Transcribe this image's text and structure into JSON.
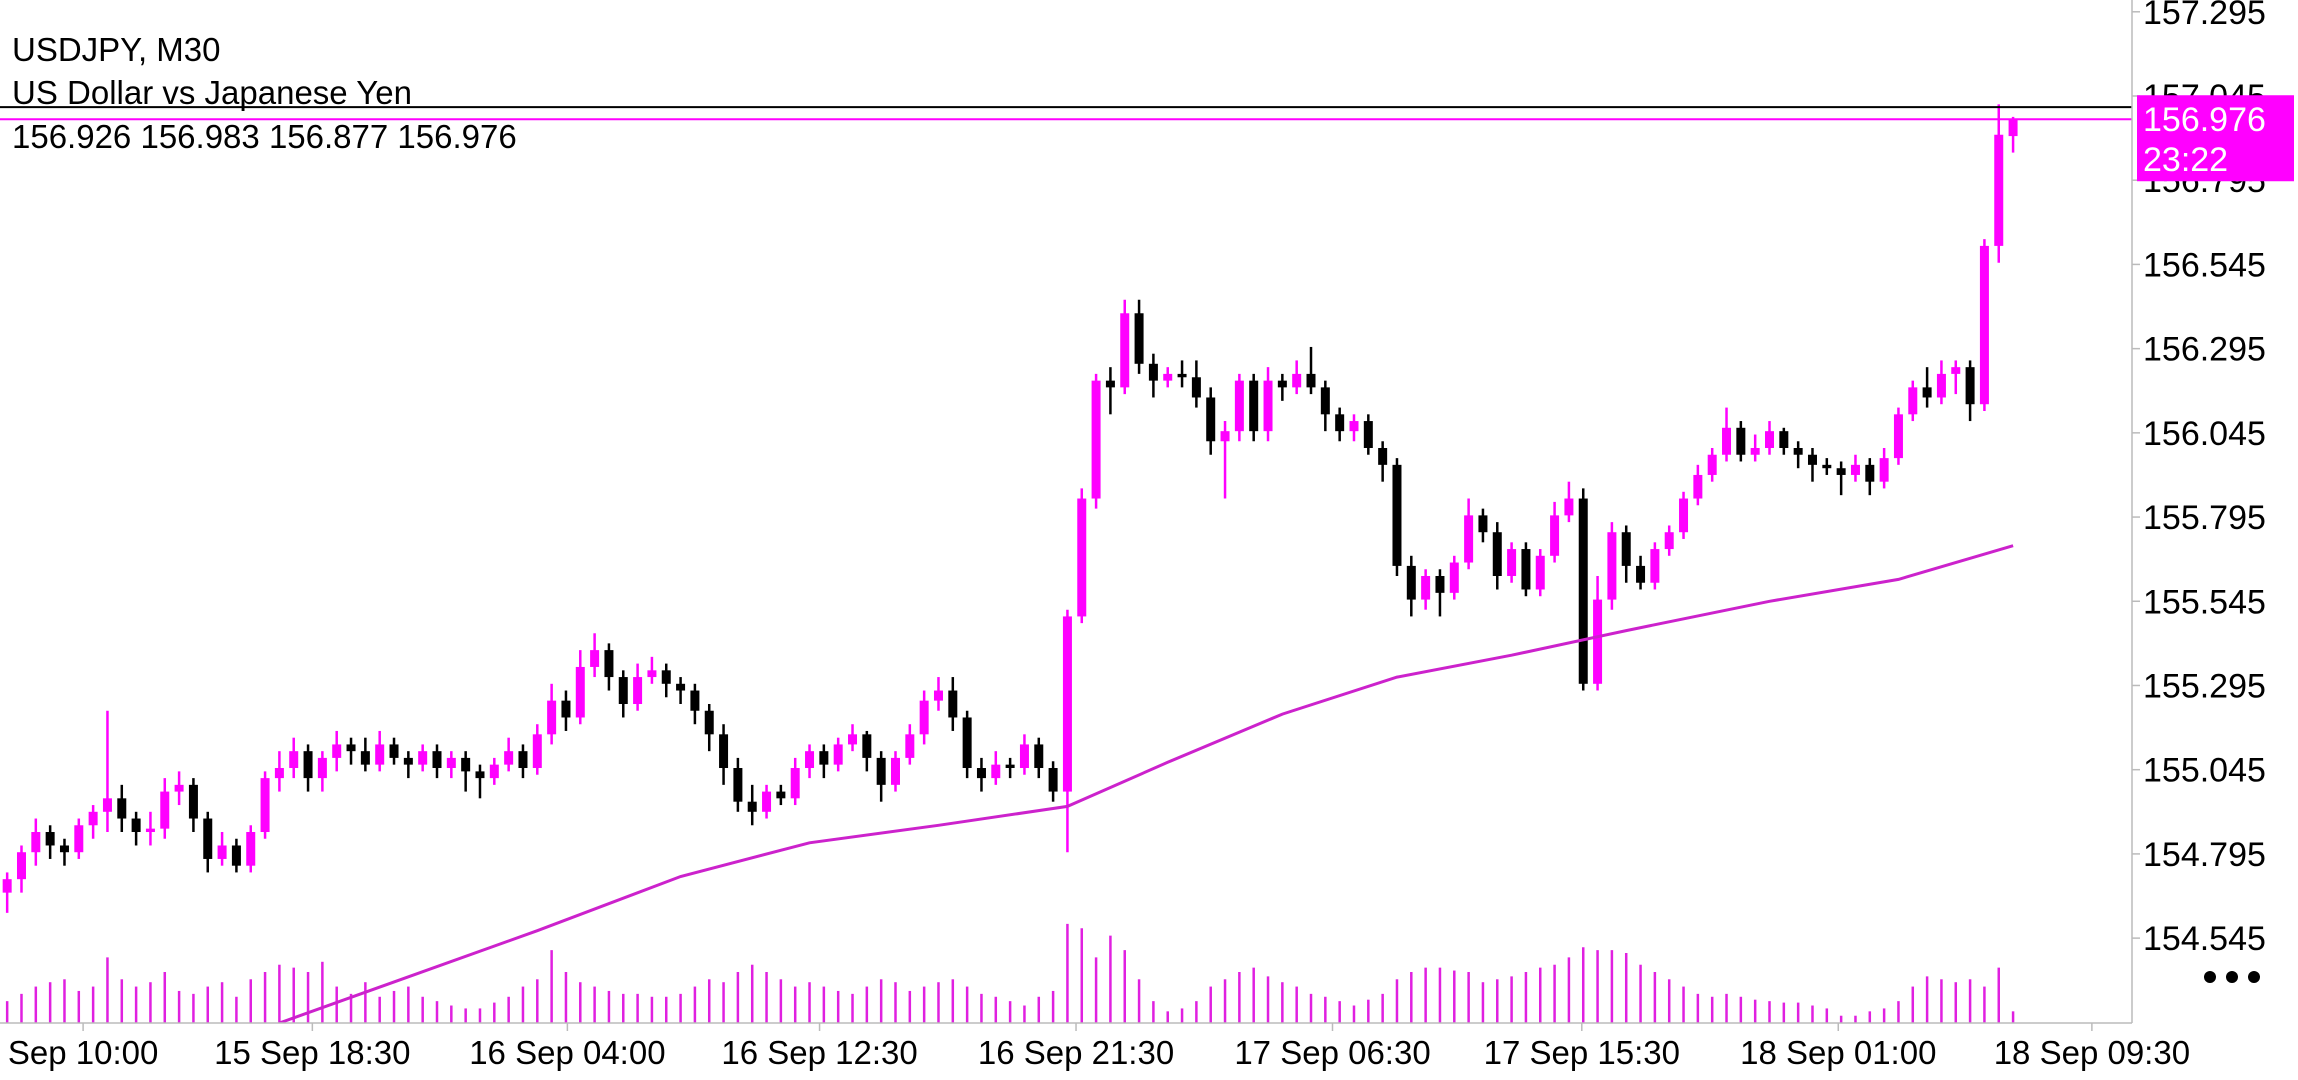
{
  "chart_data": {
    "type": "candlestick",
    "symbol": "USDJPY, M30",
    "description": "US Dollar vs Japanese Yen",
    "timer": "23:22",
    "bull_color": "#ff00ff",
    "bear_color": "#000000",
    "open": [
      154.68,
      154.72,
      154.8,
      154.86,
      154.82,
      154.8,
      154.88,
      154.92,
      154.96,
      154.9,
      154.86,
      154.87,
      154.98,
      155.0,
      154.9,
      154.78,
      154.82,
      154.76,
      154.86,
      155.02,
      155.05,
      155.1,
      155.02,
      155.08,
      155.12,
      155.1,
      155.06,
      155.12,
      155.08,
      155.06,
      155.1,
      155.05,
      155.08,
      155.04,
      155.02,
      155.06,
      155.1,
      155.05,
      155.15,
      155.25,
      155.2,
      155.35,
      155.4,
      155.32,
      155.24,
      155.32,
      155.34,
      155.3,
      155.28,
      155.22,
      155.15,
      155.05,
      154.95,
      154.92,
      154.98,
      154.96,
      155.05,
      155.1,
      155.06,
      155.12,
      155.15,
      155.08,
      155.0,
      155.08,
      155.15,
      155.25,
      155.28,
      155.2,
      155.05,
      155.02,
      155.06,
      155.05,
      155.12,
      155.05,
      154.98,
      155.5,
      155.85,
      156.2,
      156.18,
      156.4,
      156.25,
      156.2,
      156.22,
      156.21,
      156.15,
      156.02,
      156.05,
      156.2,
      156.05,
      156.2,
      156.18,
      156.22,
      156.18,
      156.1,
      156.05,
      156.08,
      156.0,
      155.95,
      155.65,
      155.55,
      155.62,
      155.57,
      155.66,
      155.8,
      155.75,
      155.62,
      155.7,
      155.58,
      155.68,
      155.8,
      155.85,
      155.3,
      155.55,
      155.75,
      155.65,
      155.6,
      155.7,
      155.75,
      155.85,
      155.92,
      155.98,
      156.06,
      155.98,
      156.0,
      156.05,
      156.0,
      155.98,
      155.95,
      155.94,
      155.92,
      155.95,
      155.9,
      155.97,
      156.1,
      156.18,
      156.15,
      156.22,
      156.24,
      156.13,
      156.6,
      156.926
    ],
    "high": [
      154.74,
      154.82,
      154.9,
      154.88,
      154.84,
      154.9,
      154.94,
      155.22,
      155.0,
      154.92,
      154.92,
      155.02,
      155.04,
      155.02,
      154.92,
      154.86,
      154.84,
      154.88,
      155.04,
      155.1,
      155.14,
      155.12,
      155.1,
      155.16,
      155.14,
      155.14,
      155.16,
      155.14,
      155.1,
      155.12,
      155.12,
      155.1,
      155.1,
      155.06,
      155.08,
      155.14,
      155.12,
      155.18,
      155.3,
      155.28,
      155.4,
      155.45,
      155.42,
      155.34,
      155.36,
      155.38,
      155.36,
      155.32,
      155.3,
      155.24,
      155.18,
      155.08,
      155.0,
      155.0,
      155.0,
      155.08,
      155.12,
      155.12,
      155.14,
      155.18,
      155.16,
      155.1,
      155.1,
      155.18,
      155.28,
      155.32,
      155.32,
      155.22,
      155.08,
      155.1,
      155.08,
      155.15,
      155.14,
      155.07,
      155.52,
      155.88,
      156.22,
      156.24,
      156.44,
      156.44,
      156.28,
      156.24,
      156.26,
      156.26,
      156.18,
      156.08,
      156.22,
      156.22,
      156.24,
      156.22,
      156.26,
      156.3,
      156.2,
      156.12,
      156.1,
      156.1,
      156.02,
      155.97,
      155.68,
      155.64,
      155.64,
      155.68,
      155.85,
      155.82,
      155.78,
      155.72,
      155.72,
      155.7,
      155.84,
      155.9,
      155.88,
      155.62,
      155.78,
      155.77,
      155.68,
      155.72,
      155.77,
      155.87,
      155.95,
      156.0,
      156.12,
      156.08,
      156.04,
      156.08,
      156.06,
      156.02,
      156.0,
      155.97,
      155.96,
      155.98,
      155.97,
      156.0,
      156.12,
      156.2,
      156.24,
      156.26,
      156.26,
      156.26,
      156.62,
      157.02,
      156.983
    ],
    "low": [
      154.62,
      154.68,
      154.76,
      154.78,
      154.76,
      154.78,
      154.84,
      154.86,
      154.86,
      154.82,
      154.82,
      154.84,
      154.94,
      154.86,
      154.74,
      154.76,
      154.74,
      154.74,
      154.84,
      154.98,
      155.02,
      154.98,
      154.98,
      155.04,
      155.06,
      155.04,
      155.04,
      155.06,
      155.02,
      155.04,
      155.02,
      155.02,
      154.98,
      154.96,
      155.0,
      155.04,
      155.02,
      155.03,
      155.12,
      155.16,
      155.18,
      155.32,
      155.28,
      155.2,
      155.22,
      155.3,
      155.26,
      155.24,
      155.18,
      155.1,
      155.0,
      154.92,
      154.88,
      154.9,
      154.94,
      154.94,
      155.02,
      155.02,
      155.04,
      155.1,
      155.04,
      154.95,
      154.98,
      155.06,
      155.12,
      155.22,
      155.16,
      155.02,
      154.98,
      155.0,
      155.02,
      155.03,
      155.02,
      154.95,
      154.8,
      155.48,
      155.82,
      156.1,
      156.16,
      156.22,
      156.15,
      156.18,
      156.18,
      156.12,
      155.98,
      155.85,
      156.02,
      156.02,
      156.02,
      156.14,
      156.16,
      156.16,
      156.05,
      156.02,
      156.02,
      155.98,
      155.9,
      155.62,
      155.5,
      155.52,
      155.5,
      155.55,
      155.64,
      155.72,
      155.58,
      155.6,
      155.56,
      155.56,
      155.66,
      155.78,
      155.28,
      155.28,
      155.52,
      155.6,
      155.58,
      155.58,
      155.68,
      155.73,
      155.83,
      155.9,
      155.96,
      155.96,
      155.96,
      155.98,
      155.98,
      155.94,
      155.9,
      155.92,
      155.86,
      155.9,
      155.86,
      155.88,
      155.95,
      156.08,
      156.12,
      156.13,
      156.16,
      156.08,
      156.11,
      156.55,
      156.877
    ],
    "close": [
      154.72,
      154.8,
      154.86,
      154.82,
      154.8,
      154.88,
      154.92,
      154.96,
      154.9,
      154.86,
      154.87,
      154.98,
      155.0,
      154.9,
      154.78,
      154.82,
      154.76,
      154.86,
      155.02,
      155.05,
      155.1,
      155.02,
      155.08,
      155.12,
      155.1,
      155.06,
      155.12,
      155.08,
      155.06,
      155.1,
      155.05,
      155.08,
      155.04,
      155.02,
      155.06,
      155.1,
      155.05,
      155.15,
      155.25,
      155.2,
      155.35,
      155.4,
      155.32,
      155.24,
      155.32,
      155.34,
      155.3,
      155.28,
      155.22,
      155.15,
      155.05,
      154.95,
      154.92,
      154.98,
      154.96,
      155.05,
      155.1,
      155.06,
      155.12,
      155.15,
      155.08,
      155.0,
      155.08,
      155.15,
      155.25,
      155.28,
      155.2,
      155.05,
      155.02,
      155.06,
      155.05,
      155.12,
      155.05,
      154.98,
      155.5,
      155.85,
      156.2,
      156.18,
      156.4,
      156.25,
      156.2,
      156.22,
      156.21,
      156.15,
      156.02,
      156.05,
      156.2,
      156.05,
      156.2,
      156.18,
      156.22,
      156.18,
      156.1,
      156.05,
      156.08,
      156.0,
      155.95,
      155.65,
      155.55,
      155.62,
      155.57,
      155.66,
      155.8,
      155.75,
      155.62,
      155.7,
      155.58,
      155.68,
      155.8,
      155.85,
      155.3,
      155.55,
      155.75,
      155.65,
      155.6,
      155.7,
      155.75,
      155.85,
      155.92,
      155.98,
      156.06,
      155.98,
      156.0,
      156.05,
      156.0,
      155.98,
      155.95,
      155.94,
      155.92,
      155.95,
      155.9,
      155.97,
      156.1,
      156.18,
      156.15,
      156.22,
      156.24,
      156.13,
      156.6,
      156.93,
      156.976
    ],
    "volume": [
      15,
      20,
      25,
      28,
      30,
      22,
      25,
      45,
      30,
      25,
      28,
      35,
      22,
      20,
      25,
      28,
      18,
      30,
      35,
      40,
      38,
      35,
      42,
      25,
      20,
      28,
      18,
      22,
      25,
      18,
      15,
      12,
      10,
      10,
      14,
      18,
      25,
      30,
      50,
      35,
      28,
      25,
      22,
      20,
      20,
      18,
      18,
      20,
      25,
      30,
      28,
      35,
      40,
      35,
      30,
      25,
      28,
      25,
      22,
      20,
      25,
      30,
      28,
      22,
      25,
      28,
      30,
      25,
      20,
      18,
      15,
      12,
      18,
      22,
      68,
      65,
      45,
      60,
      50,
      30,
      15,
      8,
      10,
      15,
      25,
      30,
      35,
      38,
      32,
      28,
      25,
      20,
      18,
      15,
      12,
      16,
      20,
      30,
      35,
      38,
      38,
      36,
      35,
      28,
      30,
      32,
      35,
      38,
      40,
      45,
      52,
      50,
      50,
      48,
      40,
      35,
      30,
      25,
      20,
      18,
      20,
      18,
      16,
      15,
      14,
      14,
      12,
      10,
      5,
      5,
      8,
      10,
      15,
      25,
      32,
      30,
      28,
      30,
      25,
      38,
      8
    ],
    "volume_color": "#e020e0",
    "volume_lim": [
      0,
      70
    ],
    "ma": {
      "color": "#cc22cc",
      "x": [
        19,
        37,
        47,
        56,
        65,
        74,
        81,
        89,
        97,
        105,
        113,
        123,
        132,
        140
      ],
      "values": [
        154.293,
        154.567,
        154.728,
        154.828,
        154.88,
        154.936,
        155.067,
        155.21,
        155.32,
        155.385,
        155.458,
        155.545,
        155.61,
        155.71
      ]
    },
    "ask_line": 157.012,
    "ask_color": "#000000",
    "xlim": [
      -0.5,
      148.3
    ],
    "xticks": [
      {
        "value": 5.3,
        "label": "Sep 10:00"
      },
      {
        "value": 21.3,
        "label": "15 Sep 18:30"
      },
      {
        "value": 39.1,
        "label": "16 Sep 04:00"
      },
      {
        "value": 56.7,
        "label": "16 Sep 12:30"
      },
      {
        "value": 74.6,
        "label": "16 Sep 21:30"
      },
      {
        "value": 92.5,
        "label": "17 Sep 06:30"
      },
      {
        "value": 109.9,
        "label": "17 Sep 15:30"
      },
      {
        "value": 127.8,
        "label": "18 Sep 01:00"
      },
      {
        "value": 145.5,
        "label": "18 Sep 09:30"
      }
    ],
    "ylim": [
      154.293,
      157.33
    ],
    "yticks": [
      157.295,
      157.045,
      156.795,
      156.545,
      156.295,
      156.045,
      155.795,
      155.545,
      155.295,
      155.045,
      154.795,
      154.545
    ]
  }
}
